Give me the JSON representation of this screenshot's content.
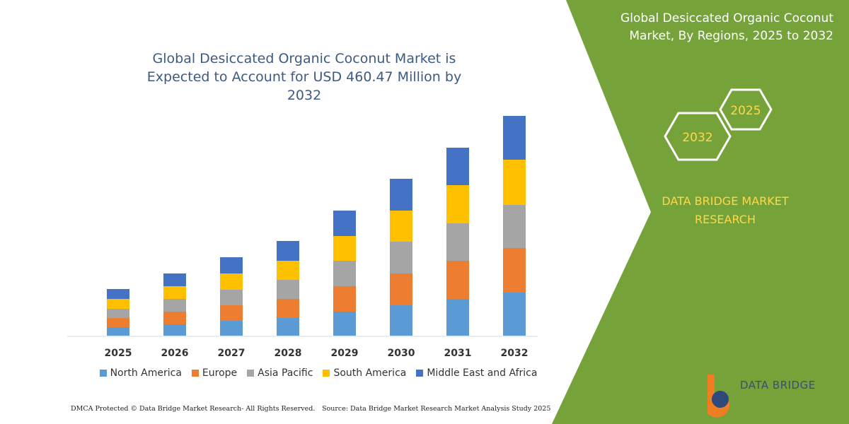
{
  "chart_data": {
    "type": "stacked_bar",
    "title": "Global Desiccated Organic Coconut Market is Expected to Account for USD 460.47 Million by 2032",
    "categories": [
      "2025",
      "2026",
      "2027",
      "2028",
      "2029",
      "2030",
      "2031",
      "2032"
    ],
    "series": [
      {
        "name": "North America",
        "color": "#5b9bd5",
        "values": [
          12,
          16,
          21,
          25,
          34,
          43,
          52,
          61
        ]
      },
      {
        "name": "Europe",
        "color": "#ed7d31",
        "values": [
          13,
          18,
          22,
          27,
          36,
          45,
          54,
          63
        ]
      },
      {
        "name": "Asia Pacific",
        "color": "#a5a5a5",
        "values": [
          13,
          18,
          22,
          27,
          36,
          45,
          53,
          61
        ]
      },
      {
        "name": "South America",
        "color": "#ffc000",
        "values": [
          14,
          18,
          23,
          27,
          35,
          44,
          54,
          64
        ]
      },
      {
        "name": "Middle East and Africa",
        "color": "#4472c4",
        "values": [
          14,
          18,
          23,
          28,
          36,
          45,
          53,
          62
        ]
      }
    ],
    "legend": "bottom"
  },
  "side_panel": {
    "title": "Global Desiccated Organic Coconut Market, By Regions, 2025 to 2032",
    "hex_labels": [
      "2025",
      "2032"
    ],
    "brand": "DATA BRIDGE MARKET RESEARCH"
  },
  "logo": "DATA BRIDGE",
  "footer": {
    "left": "DMCA Protected © Data Bridge Market Research-  All Rights Reserved.",
    "right": "Source: Data Bridge Market Research  Market Analysis Study 2025"
  }
}
